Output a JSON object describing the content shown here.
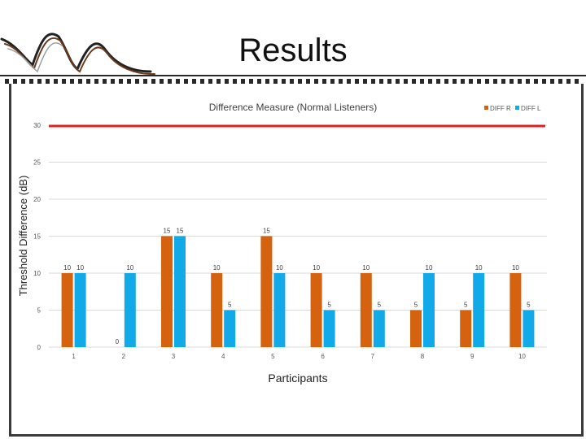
{
  "slide": {
    "title": "Results"
  },
  "colors": {
    "accent_line": "#e02020",
    "frame": "#3a3a3a"
  },
  "chart_data": {
    "type": "bar",
    "title": "Difference Measure (Normal Listeners)",
    "xlabel": "Participants",
    "ylabel": "Threshold Difference (dB)",
    "ylim": [
      0,
      30
    ],
    "yticks": [
      0,
      5,
      10,
      15,
      20,
      25,
      30
    ],
    "categories": [
      "1",
      "2",
      "3",
      "4",
      "5",
      "6",
      "7",
      "8",
      "9",
      "10"
    ],
    "series": [
      {
        "name": "DIFF R",
        "color": "#d4620f",
        "values": [
          10,
          0,
          15,
          10,
          15,
          10,
          10,
          5,
          5,
          10
        ]
      },
      {
        "name": "DIFF L",
        "color": "#12a9e8",
        "values": [
          10,
          10,
          15,
          5,
          10,
          5,
          5,
          10,
          10,
          5
        ]
      }
    ],
    "reference_line": {
      "value": 30,
      "color": "#e02020"
    },
    "legend_position": "top-right",
    "grid": true
  }
}
